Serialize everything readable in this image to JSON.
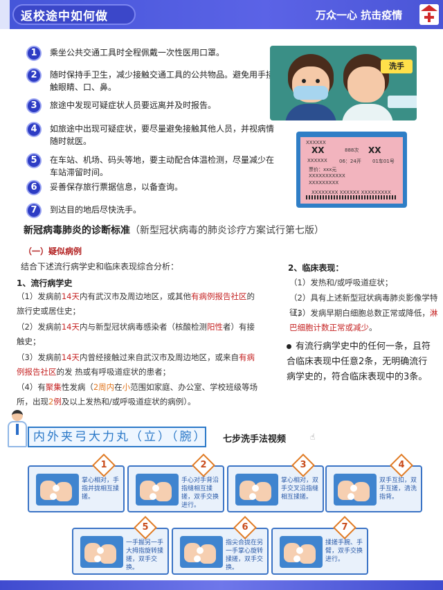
{
  "header": {
    "title": "返校途中如何做",
    "slogan": "万众一心 抗击疫情"
  },
  "tips": [
    {
      "num": "1",
      "text": "乘坐公共交通工具时全程佩戴一次性医用口罩。"
    },
    {
      "num": "2",
      "text": "随时保持手卫生，减少接触交通工具的公共物品。避免用手接触眼睛、口、鼻。"
    },
    {
      "num": "3",
      "text": "旅途中发现可疑症状人员要远离并及时报告。"
    },
    {
      "num": "4",
      "text": "如旅途中出现可疑症状，要尽量避免接触其他人员，并视病情随时就医。"
    },
    {
      "num": "5",
      "text": "在车站、机场、码头等地，要主动配合体温检测，尽量减少在车站滞留时间。"
    },
    {
      "num": "6",
      "text": "妥善保存旅行票据信息，以备查询。"
    },
    {
      "num": "7",
      "text": "到达目的地后尽快洗手。"
    }
  ],
  "illustrations": {
    "wash_tag": "洗手"
  },
  "ticket": {
    "serial": "XXXXXX",
    "from": "XX",
    "train": "888次",
    "to": "XX",
    "station": "XXXXXX",
    "time": "06：24开",
    "seat": "01车01号",
    "price": "票价：xxx元",
    "line1": "XXXXXXXXXXX",
    "line2": "XXXXXXXXX",
    "bottom": "XXXXXXXX XXXXXX XXXXXXXXX"
  },
  "criteria": {
    "title": "新冠病毒肺炎的诊断标准",
    "subtitle": "（新型冠状病毒的肺炎诊疗方案试行第七版）",
    "suspected_head": "（一）疑似病例",
    "intro": "结合下述流行病学史和临床表现综合分析：",
    "epi_head": "1、流行病学史",
    "epi_1a": "（1）发病前",
    "epi_1b": "14天",
    "epi_1c": "内有武汉市及周边地区，或其他",
    "epi_1d": "有病例报告社区",
    "epi_1e": "的",
    "epi_1f": "旅行史或居住史；",
    "epi_2a": "（2）发病前",
    "epi_2b": "14天",
    "epi_2c": "内与新型冠状病毒感染者（核酸检测",
    "epi_2d": "阳性",
    "epi_2e": "者）有接",
    "epi_2f": "触史；",
    "epi_3a": "（3）发病前",
    "epi_3b": "14天",
    "epi_3c": "内曾经接触过来自武汉市及周边地区，或来自",
    "epi_3d": "有病",
    "epi_3e": "例报告社区",
    "epi_3f": "的发 热或有呼吸道症状的患者；",
    "epi_4a": "（4）有",
    "epi_4b": "聚集",
    "epi_4c": "性发病（",
    "epi_4d": "2周内",
    "epi_4e": "在",
    "epi_4f": "小",
    "epi_4g": "范围如家庭、办公室、学校班级等场",
    "epi_4h": "所，出现",
    "epi_4i": "2",
    "epi_4j": "例",
    "epi_4k": "及以上发热和/或呼吸道症状的病例）。",
    "clin_head": "2、临床表现：",
    "clin_1": "（1）发热和/或呼吸道症状；",
    "clin_2": "（2）具有上述新型冠状病毒肺炎影像学特征；",
    "clin_3a": "（3）发病早期白细胞总数正常或降低，",
    "clin_3b": "淋",
    "clin_3c": "巴细胞计数正常或减少",
    "clin_3d": "。",
    "note": "有流行病学史中的任何一条，且符合临床表现中任意2条，无明确流行病学史的，符合临床表现中的3条。"
  },
  "handwash": {
    "chant": "内外夹弓大力丸（立）（腕）",
    "video_title": "七步洗手法视频",
    "steps": [
      {
        "num": "1",
        "desc": "掌心相对，手指并拢相互揉搓。"
      },
      {
        "num": "2",
        "desc": "手心对手背沿指缝相互揉搓，双手交换进行。"
      },
      {
        "num": "3",
        "desc": "掌心相对，双手交叉沿指缝相互揉搓。"
      },
      {
        "num": "4",
        "desc": "双手互扣，双手互搓，清洗指背。"
      },
      {
        "num": "5",
        "desc": "一手握另一手大拇指旋转揉搓，双手交换。"
      },
      {
        "num": "6",
        "desc": "指尖合拢在另一手掌心旋转揉搓，双手交换。"
      },
      {
        "num": "7",
        "desc": "揉搓手腕、手臂，双手交换进行。"
      }
    ]
  },
  "colors": {
    "header_blue": "#4455d8",
    "number_blue": "#2d3cc4",
    "highlight_red": "#c52323",
    "highlight_orange": "#e07620",
    "step_border": "#3a73c5"
  }
}
